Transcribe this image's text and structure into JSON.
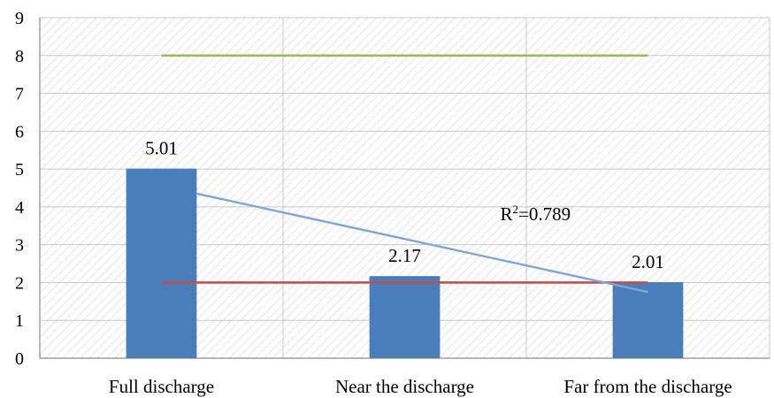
{
  "chart_data": {
    "type": "bar",
    "categories": [
      "Full discharge",
      "Near the discharge",
      "Far from the discharge"
    ],
    "series": [
      {
        "values": [
          5.01,
          2.17,
          2.01
        ],
        "data_labels": [
          "5.01",
          "2.17",
          "2.01"
        ],
        "color": "#4A7EBB"
      }
    ],
    "reference_lines": [
      {
        "value": 8,
        "color": "#9BBB59"
      },
      {
        "value": 2,
        "color": "#C0504D"
      }
    ],
    "trendline": {
      "type": "linear",
      "color": "#7EA6D8",
      "start": [
        1,
        4.35
      ],
      "end": [
        3,
        1.75
      ],
      "label": "R",
      "label_sup": "2",
      "label_suffix": "=0.789"
    },
    "ylim": [
      0,
      9
    ],
    "y_ticks": [
      "0",
      "1",
      "2",
      "3",
      "4",
      "5",
      "6",
      "7",
      "8",
      "9"
    ],
    "title": "",
    "xlabel": "",
    "ylabel": "",
    "grid": true,
    "legend": "none",
    "plot_background": "hatched"
  }
}
